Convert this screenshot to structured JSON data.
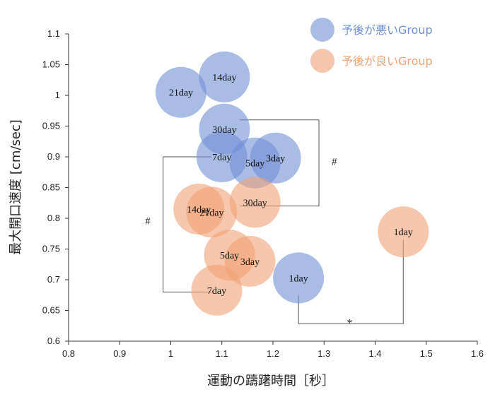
{
  "chart_data": {
    "type": "bubble",
    "xlabel": "運動の躊躇時間［秒］",
    "ylabel": "最大開口速度 [cm/sec]",
    "xlim": [
      0.8,
      1.6
    ],
    "ylim": [
      0.6,
      1.1
    ],
    "xticks": [
      0.8,
      0.9,
      1,
      1.1,
      1.2,
      1.3,
      1.4,
      1.5,
      1.6
    ],
    "yticks": [
      0.6,
      0.65,
      0.7,
      0.75,
      0.8,
      0.85,
      0.9,
      0.95,
      1,
      1.05,
      1.1
    ],
    "legend_position": "top-right",
    "series": [
      {
        "name": "予後が悪いGroup",
        "color": "#6f8fd4",
        "points": [
          {
            "label": "21day",
            "x": 1.02,
            "y": 1.005
          },
          {
            "label": "14day",
            "x": 1.105,
            "y": 1.03
          },
          {
            "label": "30day",
            "x": 1.105,
            "y": 0.945
          },
          {
            "label": "7day",
            "x": 1.1,
            "y": 0.9
          },
          {
            "label": "5day",
            "x": 1.165,
            "y": 0.89
          },
          {
            "label": "3day",
            "x": 1.205,
            "y": 0.898
          },
          {
            "label": "1day",
            "x": 1.25,
            "y": 0.703
          }
        ]
      },
      {
        "name": "予後が良いGroup",
        "color": "#f0a274",
        "points": [
          {
            "label": "14day",
            "x": 1.055,
            "y": 0.815
          },
          {
            "label": "21day",
            "x": 1.08,
            "y": 0.81
          },
          {
            "label": "30day",
            "x": 1.165,
            "y": 0.826
          },
          {
            "label": "5day",
            "x": 1.115,
            "y": 0.74
          },
          {
            "label": "3day",
            "x": 1.155,
            "y": 0.73
          },
          {
            "label": "7day",
            "x": 1.09,
            "y": 0.683
          },
          {
            "label": "1day",
            "x": 1.455,
            "y": 0.778
          }
        ]
      }
    ],
    "annotations": [
      {
        "text": "#",
        "x": 1.32,
        "y": 0.887
      },
      {
        "text": "#",
        "x": 0.955,
        "y": 0.79
      },
      {
        "text": "*",
        "x": 1.35,
        "y": 0.625
      }
    ],
    "brackets": [
      {
        "x1": 1.135,
        "y1": 0.96,
        "x2": 1.135,
        "y2": 0.82,
        "xb": 1.29
      },
      {
        "x1": 1.08,
        "y1": 0.9,
        "x2": 1.08,
        "y2": 0.68,
        "xb": 0.985
      },
      {
        "x1": 1.25,
        "y1": 0.64,
        "x2": 1.455,
        "y2": 0.64,
        "yb": 0.64
      }
    ]
  }
}
